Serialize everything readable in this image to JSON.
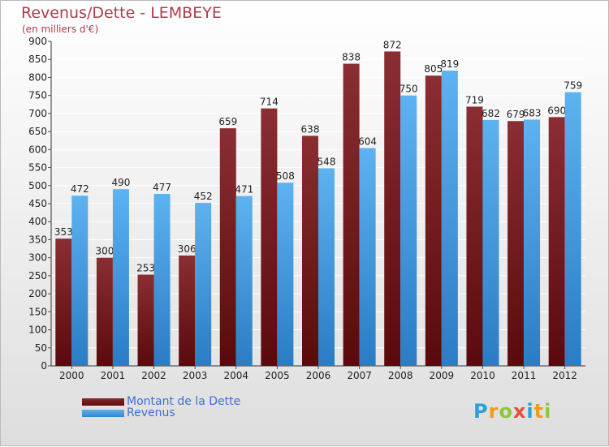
{
  "header": {
    "title": "Revenus/Dette - LEMBEYE",
    "subtitle": "(en milliers d'€)"
  },
  "colors": {
    "series_dette": "#6b0f12",
    "series_revenus": "#3f97dc"
  },
  "chart_data": {
    "type": "bar",
    "categories": [
      "2000",
      "2001",
      "2002",
      "2003",
      "2004",
      "2005",
      "2006",
      "2007",
      "2008",
      "2009",
      "2010",
      "2011",
      "2012"
    ],
    "series": [
      {
        "name": "Montant de la Dette",
        "values": [
          353,
          300,
          253,
          306,
          659,
          714,
          638,
          838,
          872,
          805,
          719,
          679,
          690
        ]
      },
      {
        "name": "Revenus",
        "values": [
          472,
          490,
          477,
          452,
          471,
          508,
          548,
          604,
          750,
          819,
          682,
          683,
          759
        ]
      }
    ],
    "yticks": [
      0,
      50,
      100,
      150,
      200,
      250,
      300,
      350,
      400,
      450,
      500,
      550,
      600,
      650,
      700,
      750,
      800,
      850,
      900
    ],
    "ylim": [
      0,
      900
    ],
    "grid": true,
    "legend_position": "bottom-left"
  },
  "legend": {
    "items": [
      {
        "label": "Montant de la Dette"
      },
      {
        "label": "Revenus"
      }
    ]
  },
  "logo": {
    "letters": [
      "P",
      "r",
      "o",
      "x",
      "i",
      "t",
      "i"
    ],
    "letter_colors": [
      "#2e9fd8",
      "#f39c12",
      "#8cc63f",
      "#e74c3c",
      "#2e9fd8",
      "#f39c12",
      "#8cc63f"
    ]
  }
}
